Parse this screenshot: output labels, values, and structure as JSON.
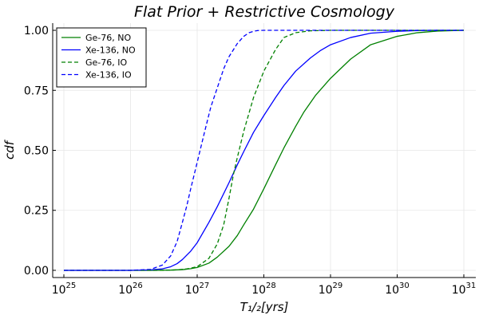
{
  "chart_data": {
    "type": "line",
    "title": "Flat Prior + Restrictive Cosmology",
    "xlabel": "T₁/₂[yrs]",
    "ylabel": "cdf",
    "xscale": "log",
    "xlim": [
      1e+25,
      1e+31
    ],
    "ylim": [
      -0.03,
      1.03
    ],
    "x_ticks": [
      {
        "value": 1e+25,
        "base": "10",
        "exp": "25"
      },
      {
        "value": 1e+26,
        "base": "10",
        "exp": "26"
      },
      {
        "value": 1e+27,
        "base": "10",
        "exp": "27"
      },
      {
        "value": 1e+28,
        "base": "10",
        "exp": "28"
      },
      {
        "value": 1e+29,
        "base": "10",
        "exp": "29"
      },
      {
        "value": 1e+30,
        "base": "10",
        "exp": "30"
      },
      {
        "value": 1e+31,
        "base": "10",
        "exp": "31"
      }
    ],
    "y_ticks": [
      {
        "value": 0,
        "label": "0.00"
      },
      {
        "value": 0.25,
        "label": "0.25"
      },
      {
        "value": 0.5,
        "label": "0.50"
      },
      {
        "value": 0.75,
        "label": "0.75"
      },
      {
        "value": 1,
        "label": "1.00"
      }
    ],
    "grid": true,
    "legend_position": "top-left",
    "series": [
      {
        "name": "Ge-76, NO",
        "color": "#008000",
        "dash": "solid",
        "x": [
          1e+25,
          1e+26,
          2e+26,
          4e+26,
          6e+26,
          8e+26,
          1e+27,
          1.5e+27,
          2e+27,
          3e+27,
          4e+27,
          5e+27,
          7e+27,
          1e+28,
          1.5e+28,
          2e+28,
          3e+28,
          4e+28,
          6e+28,
          1e+29,
          2e+29,
          4e+29,
          1e+30,
          2e+30,
          4e+30,
          1e+31
        ],
        "y": [
          0,
          0,
          0,
          0.001,
          0.003,
          0.007,
          0.012,
          0.03,
          0.055,
          0.1,
          0.145,
          0.19,
          0.255,
          0.34,
          0.44,
          0.51,
          0.6,
          0.66,
          0.73,
          0.8,
          0.88,
          0.94,
          0.975,
          0.99,
          0.997,
          1.0
        ]
      },
      {
        "name": "Xe-136, NO",
        "color": "#0000ff",
        "dash": "solid",
        "x": [
          1e+25,
          1e+26,
          2e+26,
          3e+26,
          4e+26,
          5e+26,
          6e+26,
          8e+26,
          1e+27,
          1.5e+27,
          2e+27,
          3e+27,
          4e+27,
          5e+27,
          7e+27,
          1e+28,
          1.5e+28,
          2e+28,
          3e+28,
          5e+28,
          7e+28,
          1e+29,
          2e+29,
          4e+29,
          1e+30,
          2e+30,
          4e+30,
          1e+31
        ],
        "y": [
          0,
          0,
          0.002,
          0.006,
          0.015,
          0.028,
          0.045,
          0.08,
          0.115,
          0.2,
          0.265,
          0.365,
          0.44,
          0.495,
          0.575,
          0.645,
          0.72,
          0.77,
          0.83,
          0.885,
          0.915,
          0.94,
          0.97,
          0.988,
          0.996,
          0.999,
          1.0,
          1.0
        ]
      },
      {
        "name": "Ge-76, IO",
        "color": "#008000",
        "dash": "dashed",
        "x": [
          1e+25,
          1e+26,
          3e+26,
          5e+26,
          7e+26,
          1e+27,
          1.5e+27,
          2e+27,
          2.5e+27,
          3e+27,
          3.5e+27,
          4e+27,
          5e+27,
          7e+27,
          1e+28,
          1.5e+28,
          2e+28,
          3e+28,
          5e+28,
          1e+29,
          1e+31
        ],
        "y": [
          0,
          0,
          0,
          0.002,
          0.006,
          0.015,
          0.05,
          0.11,
          0.19,
          0.3,
          0.4,
          0.47,
          0.58,
          0.72,
          0.83,
          0.92,
          0.97,
          0.99,
          0.998,
          1.0,
          1.0
        ]
      },
      {
        "name": "Xe-136, IO",
        "color": "#0000ff",
        "dash": "dashed",
        "x": [
          1e+25,
          1e+26,
          2e+26,
          3e+26,
          4e+26,
          5e+26,
          6e+26,
          7e+26,
          8e+26,
          1e+27,
          1.3e+27,
          1.6e+27,
          2e+27,
          2.5e+27,
          3e+27,
          4e+27,
          5e+27,
          6e+27,
          7e+27,
          8e+27,
          1e+28,
          1.5e+28,
          1e+31
        ],
        "y": [
          0,
          0,
          0.004,
          0.022,
          0.06,
          0.12,
          0.2,
          0.27,
          0.34,
          0.45,
          0.58,
          0.68,
          0.76,
          0.84,
          0.89,
          0.945,
          0.975,
          0.99,
          0.996,
          0.999,
          1.0,
          1.0,
          1.0
        ]
      }
    ]
  }
}
